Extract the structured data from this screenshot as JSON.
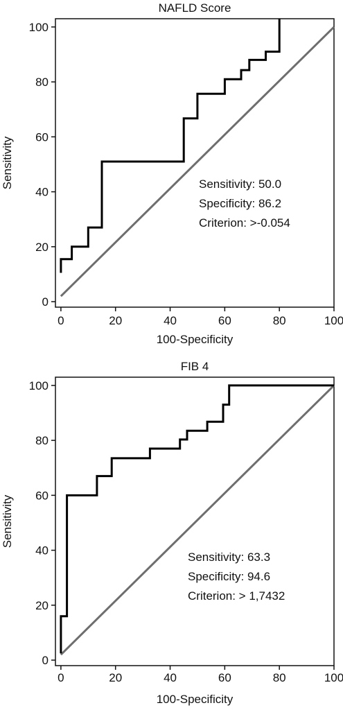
{
  "chart_data": [
    {
      "type": "line",
      "title": "NAFLD Score",
      "xlabel": "100-Specificity",
      "ylabel": "Sensitivity",
      "xlim": [
        -2,
        100
      ],
      "ylim": [
        -2,
        103
      ],
      "xticks": [
        0,
        20,
        40,
        60,
        80,
        100
      ],
      "yticks": [
        0,
        20,
        40,
        60,
        80,
        100
      ],
      "grid": false,
      "roc_curve": {
        "x": [
          0,
          0,
          4,
          4,
          10,
          10,
          15,
          15,
          45,
          45,
          50,
          50,
          60,
          60,
          66,
          66,
          69,
          69,
          75,
          75,
          80,
          80
        ],
        "y": [
          10.5,
          15.5,
          15.5,
          20,
          20,
          27,
          27,
          51,
          51,
          66.7,
          66.7,
          75.7,
          75.7,
          81,
          81,
          84.3,
          84.3,
          88,
          88,
          91,
          91,
          103
        ]
      },
      "reference_line": {
        "x": [
          0,
          100
        ],
        "y": [
          2,
          100
        ]
      },
      "annotations": [
        "Sensitivity: 50.0",
        "Specificity: 86.2",
        "Criterion: >-0.054"
      ],
      "colors": {
        "roc": "#000000",
        "reference": "#6e6e6e"
      }
    },
    {
      "type": "line",
      "title": "FIB 4",
      "xlabel": "100-Specificity",
      "ylabel": "Sensitivity",
      "xlim": [
        -2,
        100
      ],
      "ylim": [
        -2,
        103
      ],
      "xticks": [
        0,
        20,
        40,
        60,
        80,
        100
      ],
      "yticks": [
        0,
        20,
        40,
        60,
        80,
        100
      ],
      "grid": false,
      "roc_curve": {
        "x": [
          0,
          0,
          2.2,
          2.2,
          13.2,
          13.2,
          18.6,
          18.6,
          32.6,
          32.6,
          43.6,
          43.6,
          46.2,
          46.2,
          53.6,
          53.6,
          59.4,
          59.4,
          61.6,
          61.6,
          100
        ],
        "y": [
          2.5,
          16,
          16,
          60,
          60,
          67,
          67,
          73.5,
          73.5,
          77,
          77,
          80.3,
          80.3,
          83.5,
          83.5,
          86.8,
          86.8,
          93,
          93,
          100,
          100
        ]
      },
      "reference_line": {
        "x": [
          0,
          100
        ],
        "y": [
          2,
          100
        ]
      },
      "annotations": [
        "Sensitivity: 63.3",
        "Specificity: 94.6",
        "Criterion: > 1,7432"
      ],
      "colors": {
        "roc": "#000000",
        "reference": "#6e6e6e"
      }
    }
  ]
}
